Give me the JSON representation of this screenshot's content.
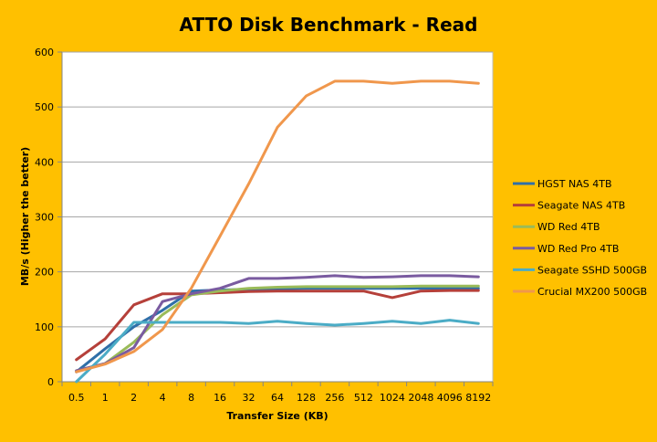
{
  "chart_data": {
    "type": "line",
    "title": "ATTO Disk Benchmark - Read",
    "xlabel": "Transfer Size (KB)",
    "ylabel": "MB/s (Higher the better)",
    "ylim": [
      0,
      600
    ],
    "yticks": [
      0,
      100,
      200,
      300,
      400,
      500,
      600
    ],
    "grid": true,
    "legend": "right",
    "categories": [
      "0.5",
      "1",
      "2",
      "4",
      "8",
      "16",
      "32",
      "64",
      "128",
      "256",
      "512",
      "1024",
      "2048",
      "4096",
      "8192"
    ],
    "series": [
      {
        "name": "HGST NAS 4TB",
        "color": "#2F6FA8",
        "values": [
          18,
          60,
          100,
          130,
          165,
          167,
          168,
          169,
          170,
          170,
          170,
          170,
          170,
          170,
          170
        ]
      },
      {
        "name": "Seagate NAS 4TB",
        "color": "#B5403A",
        "values": [
          40,
          78,
          140,
          160,
          160,
          162,
          164,
          165,
          165,
          165,
          165,
          153,
          165,
          166,
          166
        ]
      },
      {
        "name": "WD Red 4TB",
        "color": "#9ABB59",
        "values": [
          20,
          33,
          72,
          122,
          158,
          165,
          170,
          172,
          173,
          173,
          173,
          173,
          174,
          174,
          174
        ]
      },
      {
        "name": "WD Red Pro 4TB",
        "color": "#7A5BA0",
        "values": [
          20,
          33,
          62,
          146,
          160,
          170,
          188,
          188,
          190,
          193,
          190,
          191,
          193,
          193,
          191
        ]
      },
      {
        "name": "Seagate SSHD 500GB",
        "color": "#4BACC6",
        "values": [
          0,
          50,
          108,
          108,
          108,
          108,
          106,
          110,
          106,
          103,
          106,
          110,
          106,
          112,
          106
        ]
      },
      {
        "name": "Crucial MX200 500GB",
        "color": "#F0974C",
        "values": [
          18,
          32,
          55,
          95,
          170,
          265,
          360,
          463,
          520,
          547,
          547,
          543,
          547,
          547,
          543
        ]
      }
    ]
  }
}
